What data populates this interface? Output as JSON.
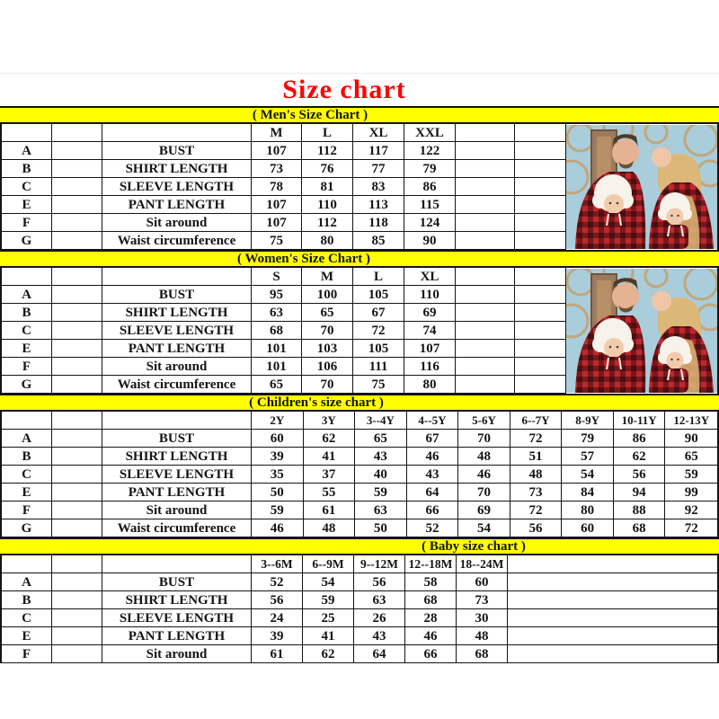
{
  "title": "Size chart",
  "colors": {
    "title": "#fe0000",
    "band": "#ffff00",
    "plaid_red": "#c1272d",
    "photo_sky": "#a9cdda"
  },
  "photo_alt": "family-in-red-plaid-pajamas",
  "sections": [
    {
      "key": "men",
      "band": "( Men's Size Chart )",
      "columns": [
        "M",
        "L",
        "XL",
        "XXL"
      ],
      "rows": [
        {
          "letter": "A",
          "label": "BUST",
          "values": [
            107,
            112,
            117,
            122
          ]
        },
        {
          "letter": "B",
          "label": "SHIRT LENGTH",
          "values": [
            73,
            76,
            77,
            79
          ]
        },
        {
          "letter": "C",
          "label": "SLEEVE LENGTH",
          "values": [
            78,
            81,
            83,
            86
          ]
        },
        {
          "letter": "E",
          "label": "PANT LENGTH",
          "values": [
            107,
            110,
            113,
            115
          ]
        },
        {
          "letter": "F",
          "label": "Sit around",
          "values": [
            107,
            112,
            118,
            124
          ]
        },
        {
          "letter": "G",
          "label": "Waist circumference",
          "values": [
            75,
            80,
            85,
            90
          ]
        }
      ]
    },
    {
      "key": "women",
      "band": "( Women's Size Chart )",
      "columns": [
        "S",
        "M",
        "L",
        "XL"
      ],
      "rows": [
        {
          "letter": "A",
          "label": "BUST",
          "values": [
            95,
            100,
            105,
            110
          ]
        },
        {
          "letter": "B",
          "label": "SHIRT LENGTH",
          "values": [
            63,
            65,
            67,
            69
          ]
        },
        {
          "letter": "C",
          "label": "SLEEVE LENGTH",
          "values": [
            68,
            70,
            72,
            74
          ]
        },
        {
          "letter": "E",
          "label": "PANT LENGTH",
          "values": [
            101,
            103,
            105,
            107
          ]
        },
        {
          "letter": "F",
          "label": "Sit around",
          "values": [
            101,
            106,
            111,
            116
          ]
        },
        {
          "letter": "G",
          "label": "Waist circumference",
          "values": [
            65,
            70,
            75,
            80
          ]
        }
      ]
    },
    {
      "key": "children",
      "band": "( Children's size chart )",
      "columns": [
        "2Y",
        "3Y",
        "3--4Y",
        "4--5Y",
        "5-6Y",
        "6--7Y",
        "8-9Y",
        "10-11Y",
        "12-13Y"
      ],
      "rows": [
        {
          "letter": "A",
          "label": "BUST",
          "values": [
            60,
            62,
            65,
            67,
            70,
            72,
            79,
            86,
            90
          ]
        },
        {
          "letter": "B",
          "label": "SHIRT LENGTH",
          "values": [
            39,
            41,
            43,
            46,
            48,
            51,
            57,
            62,
            65
          ]
        },
        {
          "letter": "C",
          "label": "SLEEVE LENGTH",
          "values": [
            35,
            37,
            40,
            43,
            46,
            48,
            54,
            56,
            59
          ]
        },
        {
          "letter": "E",
          "label": "PANT LENGTH",
          "values": [
            50,
            55,
            59,
            64,
            70,
            73,
            84,
            94,
            99
          ]
        },
        {
          "letter": "F",
          "label": "Sit around",
          "values": [
            59,
            61,
            63,
            66,
            69,
            72,
            80,
            88,
            92
          ]
        },
        {
          "letter": "G",
          "label": "Waist circumference",
          "values": [
            46,
            48,
            50,
            52,
            54,
            56,
            60,
            68,
            72
          ]
        }
      ]
    },
    {
      "key": "baby",
      "band": "( Baby size chart )",
      "columns": [
        "3--6M",
        "6--9M",
        "9--12M",
        "12--18M",
        "18--24M"
      ],
      "rows": [
        {
          "letter": "A",
          "label": "BUST",
          "values": [
            52,
            54,
            56,
            58,
            60
          ]
        },
        {
          "letter": "B",
          "label": "SHIRT LENGTH",
          "values": [
            56,
            59,
            63,
            68,
            73
          ]
        },
        {
          "letter": "C",
          "label": "SLEEVE LENGTH",
          "values": [
            24,
            25,
            26,
            28,
            30
          ]
        },
        {
          "letter": "E",
          "label": "PANT LENGTH",
          "values": [
            39,
            41,
            43,
            46,
            48
          ]
        },
        {
          "letter": "F",
          "label": "Sit around",
          "values": [
            61,
            62,
            64,
            66,
            68
          ]
        }
      ]
    }
  ]
}
